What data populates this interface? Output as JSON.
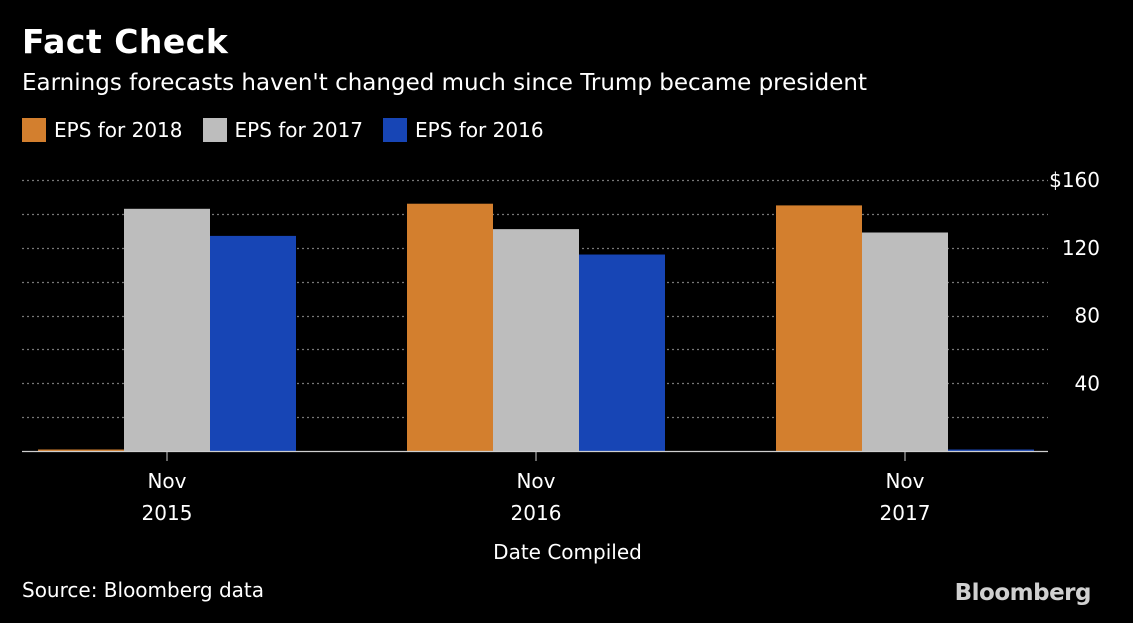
{
  "header": {
    "title": "Fact Check",
    "subtitle": "Earnings forecasts haven't changed much since Trump became president"
  },
  "footer": {
    "source": "Source: Bloomberg data",
    "brand": "Bloomberg"
  },
  "colors": {
    "background": "#000000",
    "eps_2018": "#d37f2e",
    "eps_2017": "#bdbdbd",
    "eps_2016": "#1745b5",
    "gridline": "#777777",
    "axis_line": "#cfcfcf"
  },
  "chart_data": {
    "type": "bar",
    "title": "Fact Check",
    "subtitle": "Earnings forecasts haven't changed much since Trump became president",
    "xlabel": "Date Compiled",
    "ylabel": "",
    "categories": [
      [
        "Nov",
        "2015"
      ],
      [
        "Nov",
        "2016"
      ],
      [
        "Nov",
        "2017"
      ]
    ],
    "series": [
      {
        "name": "EPS for 2018",
        "color": "#d37f2e",
        "values": [
          0.5,
          146,
          145
        ]
      },
      {
        "name": "EPS for 2017",
        "color": "#bdbdbd",
        "values": [
          143,
          131,
          129
        ]
      },
      {
        "name": "EPS for 2016",
        "color": "#1745b5",
        "values": [
          127,
          116,
          0.5
        ]
      }
    ],
    "ylim": [
      0,
      160
    ],
    "yticks": [
      {
        "value": 160,
        "label": "$160"
      },
      {
        "value": 120,
        "label": "120"
      },
      {
        "value": 80,
        "label": "80"
      },
      {
        "value": 40,
        "label": "40"
      }
    ],
    "grid": true,
    "grid_step": 20,
    "y_axis_side": "right",
    "legend_position": "top-left"
  }
}
